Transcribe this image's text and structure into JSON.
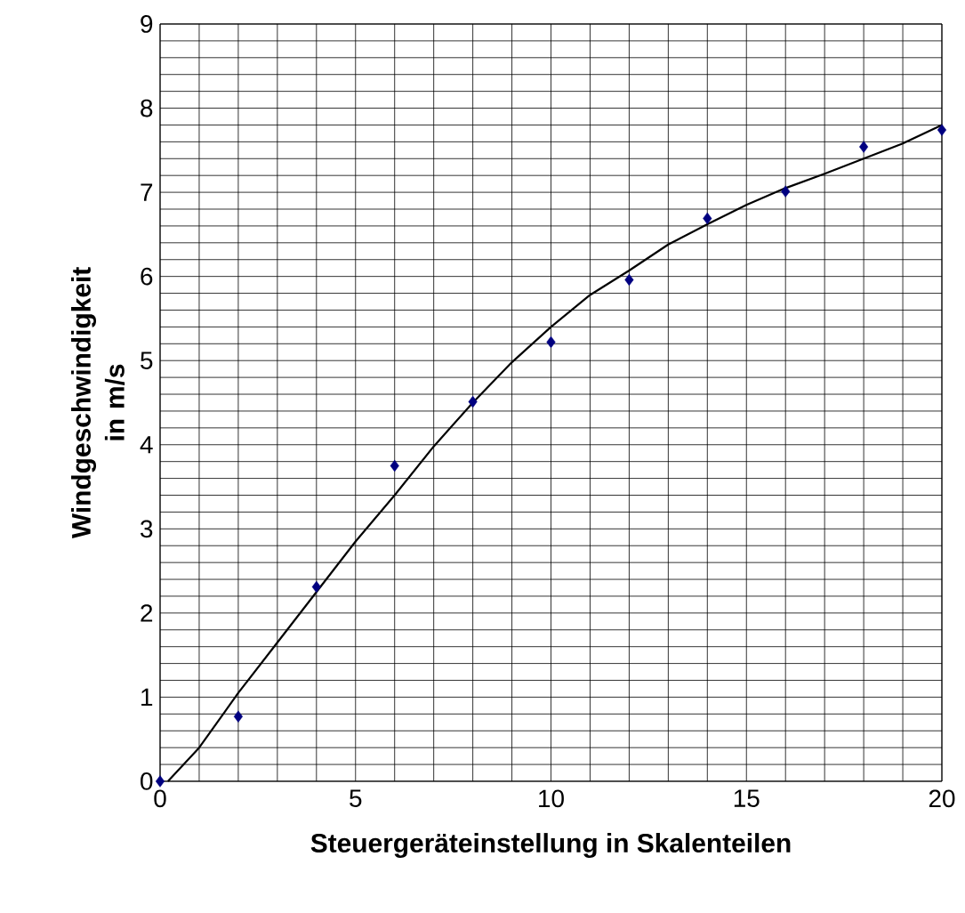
{
  "chart_data": {
    "type": "scatter",
    "xlabel": "Steuergeräteinstellung in Skalenteilen",
    "ylabel": "Windgeschwindigkeit in m/s",
    "xlim": [
      0,
      20
    ],
    "ylim": [
      0,
      9
    ],
    "grid": true,
    "xticks": [
      0,
      {
        "value": 1,
        "label": null
      },
      {
        "value": 2,
        "label": null
      },
      {
        "value": 3,
        "label": null
      },
      {
        "value": 4,
        "label": null
      },
      5,
      {
        "value": 6,
        "label": null
      },
      {
        "value": 7,
        "label": null
      },
      {
        "value": 8,
        "label": null
      },
      {
        "value": 9,
        "label": null
      },
      10,
      {
        "value": 11,
        "label": null
      },
      {
        "value": 12,
        "label": null
      },
      {
        "value": 13,
        "label": null
      },
      {
        "value": 14,
        "label": null
      },
      15,
      {
        "value": 16,
        "label": null
      },
      {
        "value": 17,
        "label": null
      },
      {
        "value": 18,
        "label": null
      },
      {
        "value": 19,
        "label": null
      },
      20
    ],
    "yticks": [
      0,
      {
        "value": 0.2,
        "label": null
      },
      {
        "value": 0.4,
        "label": null
      },
      {
        "value": 0.6,
        "label": null
      },
      {
        "value": 0.8,
        "label": null
      },
      1,
      {
        "value": 1.2,
        "label": null
      },
      {
        "value": 1.4,
        "label": null
      },
      {
        "value": 1.6,
        "label": null
      },
      {
        "value": 1.8,
        "label": null
      },
      2,
      {
        "value": 2.2,
        "label": null
      },
      {
        "value": 2.4,
        "label": null
      },
      {
        "value": 2.6,
        "label": null
      },
      {
        "value": 2.8,
        "label": null
      },
      3,
      {
        "value": 3.2,
        "label": null
      },
      {
        "value": 3.4,
        "label": null
      },
      {
        "value": 3.6,
        "label": null
      },
      {
        "value": 3.8,
        "label": null
      },
      4,
      {
        "value": 4.2,
        "label": null
      },
      {
        "value": 4.4,
        "label": null
      },
      {
        "value": 4.6,
        "label": null
      },
      {
        "value": 4.8,
        "label": null
      },
      5,
      {
        "value": 5.2,
        "label": null
      },
      {
        "value": 5.4,
        "label": null
      },
      {
        "value": 5.6,
        "label": null
      },
      {
        "value": 5.8,
        "label": null
      },
      6,
      {
        "value": 6.2,
        "label": null
      },
      {
        "value": 6.4,
        "label": null
      },
      {
        "value": 6.6,
        "label": null
      },
      {
        "value": 6.8,
        "label": null
      },
      7,
      {
        "value": 7.2,
        "label": null
      },
      {
        "value": 7.4,
        "label": null
      },
      {
        "value": 7.6,
        "label": null
      },
      {
        "value": 7.8,
        "label": null
      },
      8,
      {
        "value": 8.2,
        "label": null
      },
      {
        "value": 8.4,
        "label": null
      },
      {
        "value": 8.6,
        "label": null
      },
      {
        "value": 8.8,
        "label": null
      },
      9
    ],
    "series": [
      {
        "color": "#000080",
        "marker": "diamond",
        "x": [
          0,
          2,
          4,
          6,
          8,
          10,
          12,
          14,
          16,
          18,
          20
        ],
        "values": [
          0,
          0.77,
          2.31,
          3.75,
          4.51,
          5.22,
          5.96,
          6.69,
          7.01,
          7.54,
          7.74
        ]
      },
      {
        "type": "line",
        "color": "#000000",
        "marker": "none",
        "line_style": "solid",
        "x": [
          0.2,
          1,
          2,
          3,
          4,
          5,
          6,
          7,
          8,
          9,
          10,
          11,
          12,
          13,
          14,
          15,
          16,
          17,
          18,
          19,
          20
        ],
        "values": [
          0,
          0.4,
          1.05,
          1.65,
          2.25,
          2.85,
          3.4,
          3.98,
          4.5,
          4.98,
          5.4,
          5.78,
          6.07,
          6.38,
          6.62,
          6.85,
          7.05,
          7.22,
          7.4,
          7.58,
          7.8
        ]
      }
    ]
  }
}
